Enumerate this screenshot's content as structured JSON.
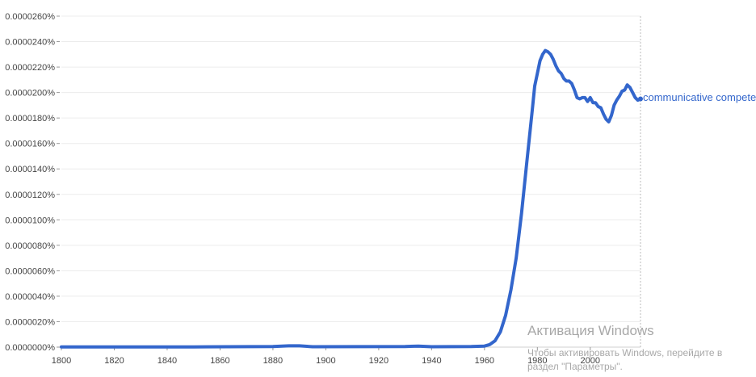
{
  "chart_data": {
    "type": "line",
    "title": "",
    "xlabel": "",
    "ylabel": "",
    "xlim": [
      1800,
      2019
    ],
    "ylim": [
      0,
      2.6e-05
    ],
    "x_ticks": [
      1800,
      1820,
      1840,
      1860,
      1880,
      1900,
      1920,
      1940,
      1960,
      1980,
      2000
    ],
    "y_ticks": [
      "0.0000000%",
      "0.0000020%",
      "0.0000040%",
      "0.0000060%",
      "0.0000080%",
      "0.0000100%",
      "0.0000120%",
      "0.0000140%",
      "0.0000160%",
      "0.0000180%",
      "0.0000200%",
      "0.0000220%",
      "0.0000240%",
      "0.0000260%"
    ],
    "y_tick_values": [
      0,
      2e-06,
      4e-06,
      6e-06,
      8e-06,
      1e-05,
      1.2e-05,
      1.4e-05,
      1.6e-05,
      1.8e-05,
      2e-05,
      2.2e-05,
      2.4e-05,
      2.6e-05
    ],
    "grid": "horizontal",
    "color": "#3366cc",
    "series": [
      {
        "name": "communicative competenc",
        "x": [
          1800,
          1850,
          1880,
          1886,
          1890,
          1895,
          1930,
          1935,
          1940,
          1955,
          1960,
          1962,
          1964,
          1966,
          1968,
          1970,
          1972,
          1974,
          1976,
          1978,
          1979,
          1980,
          1981,
          1982,
          1983,
          1984,
          1985,
          1986,
          1987,
          1988,
          1989,
          1990,
          1991,
          1992,
          1993,
          1994,
          1995,
          1996,
          1997,
          1998,
          1999,
          2000,
          2001,
          2002,
          2003,
          2004,
          2005,
          2006,
          2007,
          2008,
          2009,
          2010,
          2011,
          2012,
          2013,
          2014,
          2015,
          2016,
          2017,
          2018,
          2019
        ],
        "values": [
          2e-08,
          2e-08,
          5e-08,
          1e-07,
          1e-07,
          3e-08,
          5e-08,
          8e-08,
          3e-08,
          5e-08,
          8e-08,
          2e-07,
          5e-07,
          1.2e-06,
          2.5e-06,
          4.5e-06,
          7e-06,
          1.05e-05,
          1.45e-05,
          1.85e-05,
          2.05e-05,
          2.15e-05,
          2.25e-05,
          2.3e-05,
          2.33e-05,
          2.32e-05,
          2.3e-05,
          2.26e-05,
          2.21e-05,
          2.17e-05,
          2.15e-05,
          2.11e-05,
          2.09e-05,
          2.09e-05,
          2.07e-05,
          2.02e-05,
          1.96e-05,
          1.95e-05,
          1.96e-05,
          1.96e-05,
          1.93e-05,
          1.96e-05,
          1.92e-05,
          1.92e-05,
          1.89e-05,
          1.88e-05,
          1.83e-05,
          1.79e-05,
          1.77e-05,
          1.82e-05,
          1.9e-05,
          1.94e-05,
          1.97e-05,
          2.01e-05,
          2.02e-05,
          2.06e-05,
          2.04e-05,
          2e-05,
          1.96e-05,
          1.94e-05,
          1.95e-05
        ]
      }
    ]
  },
  "watermark": {
    "title": "Активация Windows",
    "line1": "Чтобы активировать Windows, перейдите в",
    "line2": "раздел \"Параметры\"."
  }
}
